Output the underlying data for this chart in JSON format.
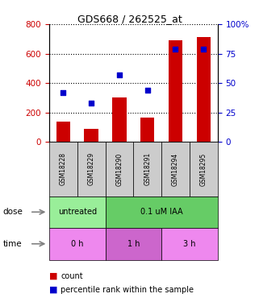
{
  "title": "GDS668 / 262525_at",
  "samples": [
    "GSM18228",
    "GSM18229",
    "GSM18290",
    "GSM18291",
    "GSM18294",
    "GSM18295"
  ],
  "counts": [
    140,
    90,
    300,
    165,
    690,
    710
  ],
  "percentiles": [
    42,
    33,
    57,
    44,
    79,
    79
  ],
  "ylim_left": [
    0,
    800
  ],
  "ylim_right": [
    0,
    100
  ],
  "yticks_left": [
    0,
    200,
    400,
    600,
    800
  ],
  "yticks_right": [
    0,
    25,
    50,
    75,
    100
  ],
  "yticklabels_right": [
    "0",
    "25",
    "50",
    "75",
    "100%"
  ],
  "bar_color": "#cc0000",
  "dot_color": "#0000cc",
  "dose_labels": [
    {
      "label": "untreated",
      "start": 0,
      "end": 2,
      "color": "#99ee99"
    },
    {
      "label": "0.1 uM IAA",
      "start": 2,
      "end": 6,
      "color": "#66cc66"
    }
  ],
  "time_labels": [
    {
      "label": "0 h",
      "start": 0,
      "end": 2,
      "color": "#ee88ee"
    },
    {
      "label": "1 h",
      "start": 2,
      "end": 4,
      "color": "#cc66cc"
    },
    {
      "label": "3 h",
      "start": 4,
      "end": 6,
      "color": "#ee88ee"
    }
  ],
  "grid_color": "#000000",
  "tick_color_left": "#cc0000",
  "tick_color_right": "#0000cc",
  "table_bg_color": "#cccccc"
}
